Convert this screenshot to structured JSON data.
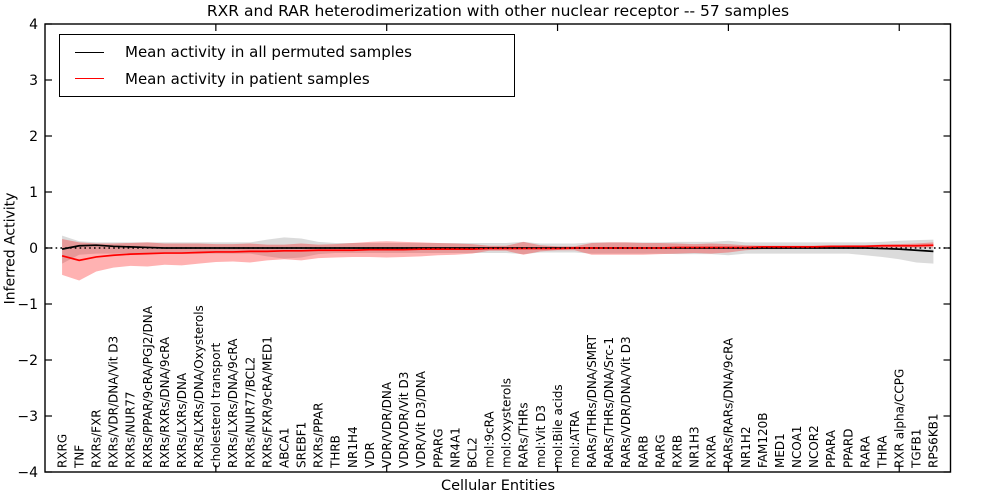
{
  "figure": {
    "title": "RXR and RAR heterodimerization with other nuclear receptor -- 57 samples",
    "xlabel": "Cellular Entities",
    "ylabel": "Inferred Activity"
  },
  "legend": {
    "items": [
      {
        "label": "Mean activity in all permuted samples",
        "color": "#000000"
      },
      {
        "label": "Mean activity in patient samples",
        "color": "#ff0000"
      }
    ]
  },
  "chart_data": {
    "type": "line",
    "title": "RXR and RAR heterodimerization with other nuclear receptor -- 57 samples",
    "xlabel": "Cellular Entities",
    "ylabel": "Inferred Activity",
    "ylim": [
      -4,
      4
    ],
    "ytick_labels": [
      "4",
      "3",
      "2",
      "1",
      "0",
      "−1",
      "−2",
      "−3",
      "−4"
    ],
    "ytick_values": [
      4,
      3,
      2,
      1,
      0,
      -1,
      -2,
      -3,
      -4
    ],
    "xtick_positions": [
      10,
      20,
      30,
      40,
      50
    ],
    "grid": false,
    "legend_position": "upper left",
    "zero_reference_line": {
      "style": "dotted",
      "color": "#000000",
      "y": 0
    },
    "categories": [
      "RXRG",
      "TNF",
      "RXRs/FXR",
      "RXRs/VDR/DNA/Vit D3",
      "RXRs/NUR77",
      "RXRs/PPAR/9cRA/PGJ2/DNA",
      "RXRs/RXRs/DNA/9cRA",
      "RXRs/LXRs/DNA",
      "RXRs/LXRs/DNA/Oxysterols",
      "cholesterol transport",
      "RXRs/LXRs/DNA/9cRA",
      "RXRs/NUR77/BCL2",
      "RXRs/FXR/9cRA/MED1",
      "ABCA1",
      "SREBF1",
      "RXRs/PPAR",
      "THRB",
      "NR1H4",
      "VDR",
      "VDR/VDR/DNA",
      "VDR/VDR/Vit D3",
      "VDR/Vit D3/DNA",
      "PPARG",
      "NR4A1",
      "BCL2",
      "mol:9cRA",
      "mol:Oxysterols",
      "RARs/THRs",
      "mol:Vit D3",
      "mol:Bile acids",
      "mol:ATRA",
      "RARs/THRs/DNA/SMRT",
      "RARs/THRs/DNA/Src-1",
      "RARs/VDR/DNA/Vit D3",
      "RARB",
      "RARG",
      "RXRB",
      "NR1H3",
      "RXRA",
      "RARs/RARs/DNA/9cRA",
      "NR1H2",
      "FAM120B",
      "MED1",
      "NCOA1",
      "NCOR2",
      "PPARA",
      "PPARD",
      "RARA",
      "THRA",
      "RXR alpha/CCPG",
      "TGFB1",
      "RPS6KB1"
    ],
    "series": [
      {
        "name": "Mean activity in all permuted samples",
        "color": "#000000",
        "band_color": "#000000",
        "band_opacity": 0.14,
        "values": [
          -0.02,
          0.04,
          0.05,
          0.03,
          0.02,
          0.01,
          0.0,
          0.0,
          0.0,
          0.0,
          0.0,
          0.0,
          0.0,
          0.0,
          0.0,
          0.0,
          0.0,
          0.0,
          0.0,
          0.0,
          0.0,
          0.0,
          0.0,
          0.0,
          0.0,
          0.0,
          0.0,
          0.0,
          0.0,
          0.0,
          0.0,
          0.0,
          0.0,
          0.0,
          0.0,
          0.0,
          0.0,
          0.0,
          0.0,
          0.0,
          0.0,
          0.0,
          0.0,
          0.0,
          0.0,
          0.0,
          0.0,
          0.0,
          -0.01,
          -0.02,
          -0.04,
          -0.06
        ],
        "band_upper": [
          0.22,
          0.12,
          0.1,
          0.1,
          0.1,
          0.1,
          0.1,
          0.1,
          0.1,
          0.1,
          0.1,
          0.1,
          0.15,
          0.19,
          0.17,
          0.11,
          0.09,
          0.09,
          0.09,
          0.09,
          0.09,
          0.09,
          0.09,
          0.09,
          0.09,
          0.09,
          0.09,
          0.11,
          0.08,
          0.08,
          0.08,
          0.1,
          0.1,
          0.1,
          0.1,
          0.1,
          0.11,
          0.11,
          0.11,
          0.13,
          0.1,
          0.1,
          0.1,
          0.1,
          0.1,
          0.1,
          0.1,
          0.1,
          0.11,
          0.13,
          0.14,
          0.15
        ],
        "band_lower": [
          -0.28,
          -0.12,
          -0.1,
          -0.1,
          -0.1,
          -0.1,
          -0.1,
          -0.1,
          -0.1,
          -0.1,
          -0.1,
          -0.1,
          -0.15,
          -0.19,
          -0.17,
          -0.11,
          -0.09,
          -0.09,
          -0.09,
          -0.09,
          -0.09,
          -0.09,
          -0.09,
          -0.09,
          -0.09,
          -0.09,
          -0.09,
          -0.11,
          -0.08,
          -0.08,
          -0.08,
          -0.1,
          -0.1,
          -0.1,
          -0.1,
          -0.1,
          -0.11,
          -0.11,
          -0.11,
          -0.13,
          -0.1,
          -0.1,
          -0.1,
          -0.1,
          -0.1,
          -0.1,
          -0.1,
          -0.13,
          -0.16,
          -0.2,
          -0.26,
          -0.28
        ]
      },
      {
        "name": "Mean activity in patient samples",
        "color": "#ff0000",
        "band_color": "#ff0000",
        "band_opacity": 0.3,
        "values": [
          -0.14,
          -0.22,
          -0.16,
          -0.13,
          -0.11,
          -0.1,
          -0.09,
          -0.09,
          -0.08,
          -0.07,
          -0.07,
          -0.06,
          -0.06,
          -0.05,
          -0.05,
          -0.04,
          -0.04,
          -0.04,
          -0.03,
          -0.03,
          -0.03,
          -0.02,
          -0.02,
          -0.02,
          -0.02,
          -0.01,
          -0.01,
          -0.01,
          -0.01,
          -0.01,
          0.0,
          0.0,
          0.0,
          0.0,
          0.0,
          0.0,
          0.01,
          0.01,
          0.01,
          0.01,
          0.01,
          0.02,
          0.02,
          0.02,
          0.02,
          0.03,
          0.03,
          0.03,
          0.04,
          0.04,
          0.04,
          0.05
        ],
        "band_upper": [
          0.16,
          0.1,
          0.08,
          0.08,
          0.09,
          0.1,
          0.08,
          0.08,
          0.08,
          0.07,
          0.07,
          0.08,
          0.06,
          0.06,
          0.08,
          0.06,
          0.07,
          0.09,
          0.11,
          0.12,
          0.11,
          0.1,
          0.09,
          0.08,
          0.07,
          0.04,
          0.04,
          0.11,
          0.05,
          0.03,
          0.03,
          0.09,
          0.1,
          0.1,
          0.09,
          0.09,
          0.08,
          0.07,
          0.08,
          0.07,
          0.05,
          0.04,
          0.04,
          0.04,
          0.04,
          0.04,
          0.05,
          0.05,
          0.06,
          0.07,
          0.08,
          0.1
        ],
        "band_lower": [
          -0.48,
          -0.58,
          -0.42,
          -0.35,
          -0.32,
          -0.33,
          -0.3,
          -0.31,
          -0.28,
          -0.25,
          -0.24,
          -0.26,
          -0.22,
          -0.2,
          -0.22,
          -0.18,
          -0.17,
          -0.16,
          -0.16,
          -0.17,
          -0.16,
          -0.15,
          -0.13,
          -0.12,
          -0.1,
          -0.05,
          -0.05,
          -0.12,
          -0.06,
          -0.04,
          -0.04,
          -0.12,
          -0.12,
          -0.12,
          -0.12,
          -0.11,
          -0.1,
          -0.09,
          -0.1,
          -0.08,
          -0.04,
          -0.02,
          -0.02,
          -0.01,
          -0.01,
          -0.01,
          -0.01,
          0.0,
          0.0,
          0.01,
          0.01,
          0.01
        ]
      }
    ]
  }
}
